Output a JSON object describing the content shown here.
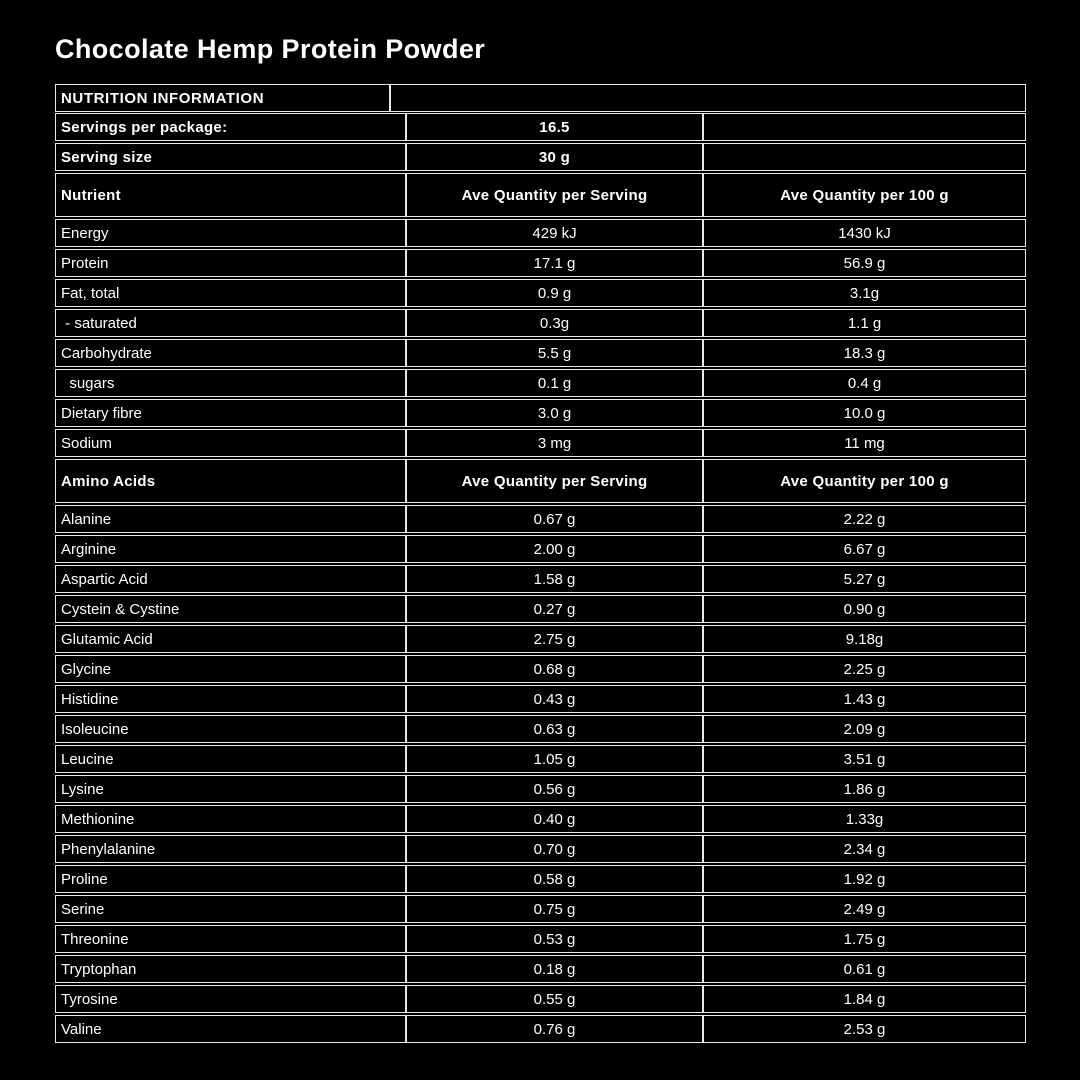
{
  "page": {
    "title": "Chocolate Hemp Protein Powder",
    "background_color": "#000000",
    "text_color": "#ffffff",
    "border_color": "#e6e6e6"
  },
  "table": {
    "section_label": "NUTRITION INFORMATION",
    "servings": {
      "label": "Servings per package:",
      "value": "16.5"
    },
    "serving_size": {
      "label": "Serving size",
      "value": "30 g"
    },
    "nutrient_header": {
      "label": "Nutrient",
      "per_serving": "Ave Quantity per Serving",
      "per_100g": "Ave Quantity per 100 g"
    },
    "nutrients": [
      {
        "label": "Energy",
        "per_serving": "429 kJ",
        "per_100g": "1430 kJ"
      },
      {
        "label": "Protein",
        "per_serving": "17.1 g",
        "per_100g": "56.9 g"
      },
      {
        "label": "Fat, total",
        "per_serving": "0.9 g",
        "per_100g": "3.1g"
      },
      {
        "label": " - saturated",
        "per_serving": "0.3g",
        "per_100g": "1.1 g"
      },
      {
        "label": "Carbohydrate",
        "per_serving": "5.5 g",
        "per_100g": "18.3 g"
      },
      {
        "label": "  sugars",
        "per_serving": "0.1 g",
        "per_100g": "0.4 g"
      },
      {
        "label": "Dietary fibre",
        "per_serving": "3.0 g",
        "per_100g": "10.0 g"
      },
      {
        "label": "Sodium",
        "per_serving": "3 mg",
        "per_100g": "11 mg"
      }
    ],
    "amino_header": {
      "label": "Amino Acids",
      "per_serving": "Ave Quantity per Serving",
      "per_100g": "Ave Quantity per 100 g"
    },
    "amino_acids": [
      {
        "label": "Alanine",
        "per_serving": "0.67 g",
        "per_100g": "2.22 g"
      },
      {
        "label": "Arginine",
        "per_serving": "2.00 g",
        "per_100g": "6.67 g"
      },
      {
        "label": "Aspartic Acid",
        "per_serving": "1.58 g",
        "per_100g": "5.27 g"
      },
      {
        "label": "Cystein & Cystine",
        "per_serving": "0.27 g",
        "per_100g": "0.90 g"
      },
      {
        "label": "Glutamic Acid",
        "per_serving": "2.75 g",
        "per_100g": "9.18g"
      },
      {
        "label": "Glycine",
        "per_serving": "0.68 g",
        "per_100g": "2.25 g"
      },
      {
        "label": "Histidine",
        "per_serving": "0.43 g",
        "per_100g": "1.43 g"
      },
      {
        "label": "Isoleucine",
        "per_serving": "0.63 g",
        "per_100g": "2.09 g"
      },
      {
        "label": "Leucine",
        "per_serving": "1.05 g",
        "per_100g": "3.51 g"
      },
      {
        "label": "Lysine",
        "per_serving": "0.56 g",
        "per_100g": "1.86 g"
      },
      {
        "label": "Methionine",
        "per_serving": "0.40 g",
        "per_100g": "1.33g"
      },
      {
        "label": "Phenylalanine",
        "per_serving": "0.70 g",
        "per_100g": "2.34 g"
      },
      {
        "label": "Proline",
        "per_serving": "0.58 g",
        "per_100g": "1.92 g"
      },
      {
        "label": "Serine",
        "per_serving": "0.75 g",
        "per_100g": "2.49 g"
      },
      {
        "label": "Threonine",
        "per_serving": "0.53 g",
        "per_100g": "1.75 g"
      },
      {
        "label": "Tryptophan",
        "per_serving": "0.18 g",
        "per_100g": "0.61 g"
      },
      {
        "label": "Tyrosine",
        "per_serving": "0.55 g",
        "per_100g": "1.84 g"
      },
      {
        "label": "Valine",
        "per_serving": "0.76 g",
        "per_100g": "2.53 g"
      }
    ]
  }
}
